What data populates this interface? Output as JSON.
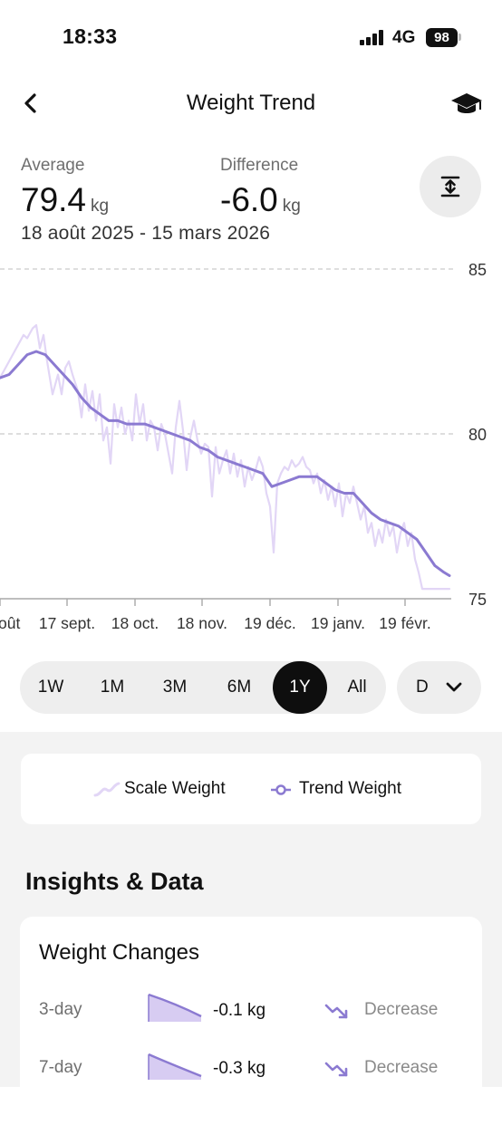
{
  "status_bar": {
    "time": "18:33",
    "network": "4G",
    "battery": "98"
  },
  "header": {
    "title": "Weight Trend",
    "back_icon": "chevron-left-icon",
    "learn_icon": "graduation-cap-icon"
  },
  "stats": {
    "average_label": "Average",
    "average_value": "79.4",
    "average_unit": "kg",
    "difference_label": "Difference",
    "difference_value": "-6.0",
    "difference_unit": "kg",
    "date_range": "18 août 2025 - 15 mars 2026",
    "scale_toggle_icon": "vertical-expand-icon"
  },
  "chart_data": {
    "type": "line",
    "y_ticks": [
      "85",
      "80",
      "75"
    ],
    "ylim": [
      75,
      85
    ],
    "grid": "dashed horizontal",
    "x_tick_labels": [
      "oût",
      "17 sept.",
      "18 oct.",
      "18 nov.",
      "19 déc.",
      "19 janv.",
      "19 févr."
    ],
    "series": [
      {
        "name": "Scale Weight",
        "color": "#e2d6f6",
        "points": [
          [
            0,
            81.7
          ],
          [
            8,
            82.1
          ],
          [
            18,
            82.6
          ],
          [
            26,
            83.0
          ],
          [
            30,
            82.9
          ],
          [
            36,
            83.2
          ],
          [
            40,
            83.3
          ],
          [
            44,
            82.6
          ],
          [
            48,
            83.0
          ],
          [
            52,
            82.2
          ],
          [
            58,
            81.2
          ],
          [
            64,
            81.8
          ],
          [
            68,
            81.2
          ],
          [
            72,
            82.0
          ],
          [
            76,
            82.2
          ],
          [
            80,
            81.8
          ],
          [
            86,
            81.3
          ],
          [
            90,
            80.5
          ],
          [
            94,
            81.5
          ],
          [
            98,
            80.7
          ],
          [
            102,
            81.3
          ],
          [
            106,
            80.4
          ],
          [
            110,
            81.2
          ],
          [
            114,
            79.8
          ],
          [
            118,
            80.2
          ],
          [
            122,
            79.1
          ],
          [
            126,
            80.9
          ],
          [
            130,
            80.2
          ],
          [
            134,
            80.8
          ],
          [
            138,
            80.0
          ],
          [
            142,
            80.4
          ],
          [
            146,
            79.8
          ],
          [
            150,
            81.2
          ],
          [
            154,
            80.3
          ],
          [
            158,
            80.9
          ],
          [
            162,
            79.8
          ],
          [
            166,
            80.4
          ],
          [
            170,
            80.2
          ],
          [
            174,
            79.5
          ],
          [
            178,
            80.3
          ],
          [
            182,
            80.0
          ],
          [
            186,
            79.4
          ],
          [
            190,
            78.8
          ],
          [
            194,
            80.2
          ],
          [
            198,
            81.0
          ],
          [
            202,
            80.1
          ],
          [
            206,
            78.9
          ],
          [
            210,
            79.9
          ],
          [
            214,
            80.4
          ],
          [
            218,
            79.8
          ],
          [
            222,
            79.4
          ],
          [
            226,
            79.7
          ],
          [
            230,
            79.6
          ],
          [
            234,
            78.1
          ],
          [
            238,
            79.6
          ],
          [
            242,
            78.8
          ],
          [
            246,
            79.2
          ],
          [
            250,
            79.5
          ],
          [
            254,
            78.8
          ],
          [
            258,
            79.4
          ],
          [
            262,
            78.7
          ],
          [
            266,
            79.2
          ],
          [
            270,
            78.4
          ],
          [
            274,
            79.0
          ],
          [
            278,
            78.6
          ],
          [
            282,
            78.9
          ],
          [
            286,
            79.3
          ],
          [
            290,
            79.0
          ],
          [
            294,
            78.2
          ],
          [
            298,
            77.8
          ],
          [
            302,
            76.4
          ],
          [
            306,
            78.5
          ],
          [
            310,
            78.8
          ],
          [
            314,
            79.0
          ],
          [
            318,
            78.9
          ],
          [
            322,
            79.2
          ],
          [
            326,
            79.0
          ],
          [
            330,
            79.1
          ],
          [
            334,
            79.3
          ],
          [
            338,
            79.0
          ],
          [
            342,
            78.9
          ],
          [
            346,
            78.5
          ],
          [
            350,
            78.8
          ],
          [
            354,
            78.2
          ],
          [
            358,
            78.6
          ],
          [
            362,
            78.0
          ],
          [
            366,
            78.4
          ],
          [
            370,
            77.8
          ],
          [
            374,
            78.5
          ],
          [
            378,
            77.5
          ],
          [
            382,
            78.2
          ],
          [
            386,
            77.9
          ],
          [
            390,
            78.4
          ],
          [
            394,
            77.9
          ],
          [
            398,
            77.4
          ],
          [
            402,
            77.8
          ],
          [
            406,
            77.0
          ],
          [
            410,
            77.3
          ],
          [
            414,
            76.6
          ],
          [
            418,
            77.1
          ],
          [
            422,
            76.7
          ],
          [
            426,
            77.4
          ],
          [
            430,
            76.9
          ],
          [
            434,
            77.2
          ],
          [
            438,
            76.4
          ],
          [
            442,
            77.0
          ],
          [
            446,
            77.3
          ],
          [
            450,
            76.6
          ],
          [
            454,
            77.0
          ],
          [
            458,
            76.2
          ],
          [
            462,
            75.8
          ],
          [
            466,
            75.3
          ],
          [
            470,
            75.3
          ],
          [
            480,
            75.3
          ],
          [
            496,
            75.3
          ]
        ]
      },
      {
        "name": "Trend Weight",
        "color": "#8b7ad1",
        "points": [
          [
            0,
            81.7
          ],
          [
            10,
            81.8
          ],
          [
            20,
            82.1
          ],
          [
            30,
            82.4
          ],
          [
            40,
            82.5
          ],
          [
            50,
            82.4
          ],
          [
            60,
            82.1
          ],
          [
            70,
            81.8
          ],
          [
            80,
            81.5
          ],
          [
            90,
            81.1
          ],
          [
            100,
            80.8
          ],
          [
            110,
            80.6
          ],
          [
            120,
            80.4
          ],
          [
            130,
            80.4
          ],
          [
            140,
            80.3
          ],
          [
            150,
            80.3
          ],
          [
            160,
            80.3
          ],
          [
            170,
            80.2
          ],
          [
            180,
            80.1
          ],
          [
            190,
            80.0
          ],
          [
            200,
            79.9
          ],
          [
            210,
            79.8
          ],
          [
            220,
            79.6
          ],
          [
            230,
            79.5
          ],
          [
            240,
            79.3
          ],
          [
            250,
            79.2
          ],
          [
            260,
            79.1
          ],
          [
            270,
            79.0
          ],
          [
            280,
            78.9
          ],
          [
            290,
            78.8
          ],
          [
            300,
            78.4
          ],
          [
            310,
            78.5
          ],
          [
            320,
            78.6
          ],
          [
            330,
            78.7
          ],
          [
            340,
            78.7
          ],
          [
            350,
            78.7
          ],
          [
            360,
            78.5
          ],
          [
            370,
            78.3
          ],
          [
            380,
            78.2
          ],
          [
            390,
            78.2
          ],
          [
            400,
            77.9
          ],
          [
            410,
            77.6
          ],
          [
            420,
            77.4
          ],
          [
            430,
            77.3
          ],
          [
            440,
            77.2
          ],
          [
            450,
            77.0
          ],
          [
            460,
            76.8
          ],
          [
            470,
            76.4
          ],
          [
            480,
            76.0
          ],
          [
            490,
            75.8
          ],
          [
            496,
            75.7
          ]
        ]
      }
    ]
  },
  "periods": {
    "buttons": [
      "1W",
      "1M",
      "3M",
      "6M",
      "1Y",
      "All"
    ],
    "active": "1Y",
    "interval_label": "D",
    "interval_icon": "chevron-down-icon"
  },
  "legend": {
    "scale_label": "Scale Weight",
    "trend_label": "Trend Weight"
  },
  "insights": {
    "title": "Insights & Data",
    "card_title": "Weight Changes",
    "rows": [
      {
        "period": "3-day",
        "value": "-0.1 kg",
        "status": "Decrease"
      },
      {
        "period": "7-day",
        "value": "-0.3 kg",
        "status": "Decrease"
      }
    ]
  }
}
